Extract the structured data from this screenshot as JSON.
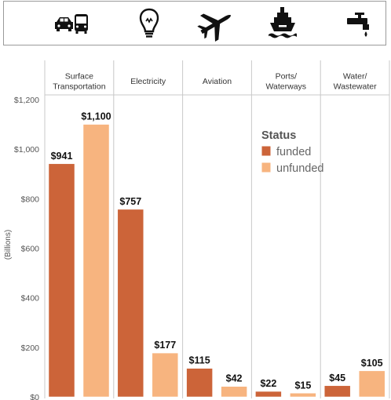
{
  "icons": [
    {
      "name": "car-bus-icon",
      "for": "Surface Transportation"
    },
    {
      "name": "lightbulb-icon",
      "for": "Electricity"
    },
    {
      "name": "airplane-icon",
      "for": "Aviation"
    },
    {
      "name": "ship-icon",
      "for": "Ports/Waterways"
    },
    {
      "name": "faucet-icon",
      "for": "Water/Wastewater"
    }
  ],
  "chart_data": {
    "type": "bar",
    "title": "",
    "xlabel": "",
    "ylabel": "(Billions)",
    "ylim": [
      0,
      1200
    ],
    "yticks": [
      0,
      200,
      400,
      600,
      800,
      1000,
      1200
    ],
    "ytick_labels": [
      "$0",
      "$200",
      "$400",
      "$600",
      "$800",
      "$1,000",
      "$1,200"
    ],
    "categories": [
      [
        "Surface",
        "Transportation"
      ],
      [
        "Electricity"
      ],
      [
        "Aviation"
      ],
      [
        "Ports/",
        "Waterways"
      ],
      [
        "Water/",
        "Wastewater"
      ]
    ],
    "series": [
      {
        "name": "funded",
        "color": "#cc6439",
        "values": [
          941,
          757,
          115,
          22,
          45
        ],
        "labels": [
          "$941",
          "$757",
          "$115",
          "$22",
          "$45"
        ]
      },
      {
        "name": "unfunded",
        "color": "#f7b47f",
        "values": [
          1100,
          177,
          42,
          15,
          105
        ],
        "labels": [
          "$1,100",
          "$177",
          "$42",
          "$15",
          "$105"
        ]
      }
    ],
    "legend": {
      "title": "Status",
      "position": "top-right"
    },
    "grid": false
  }
}
